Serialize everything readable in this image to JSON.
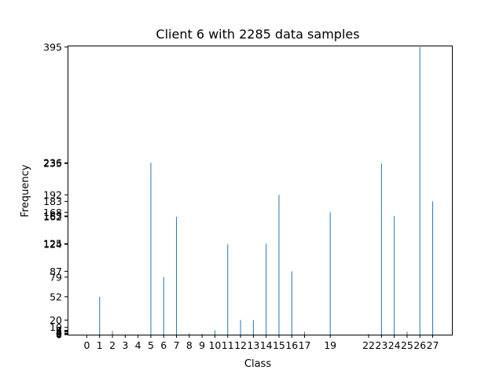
{
  "chart_data": {
    "type": "bar",
    "title": "Client 6 with 2285 data samples",
    "xlabel": "Class",
    "ylabel": "Frequency",
    "x": [
      0,
      1,
      2,
      3,
      4,
      5,
      6,
      7,
      8,
      9,
      10,
      11,
      12,
      13,
      14,
      15,
      16,
      17,
      19,
      22,
      23,
      24,
      25,
      26,
      27
    ],
    "values": [
      0,
      52,
      5,
      0,
      0,
      236,
      79,
      162,
      2,
      1,
      6,
      124,
      20,
      20,
      125,
      192,
      87,
      4,
      168,
      1,
      235,
      163,
      4,
      395,
      183
    ],
    "x_tick_labels": [
      "0",
      "1",
      "2",
      "3",
      "4",
      "5",
      "6",
      "7",
      "8",
      "9",
      "10",
      "11",
      "12",
      "13",
      "14",
      "15",
      "16",
      "17",
      "19",
      "22",
      "23",
      "24",
      "25",
      "26",
      "27"
    ],
    "y_ticks": [
      0,
      1,
      2,
      4,
      5,
      6,
      10,
      20,
      52,
      79,
      87,
      124,
      125,
      162,
      163,
      168,
      183,
      192,
      235,
      236,
      395
    ],
    "xlim": [
      -1.5,
      28.5
    ],
    "ylim": [
      0,
      397
    ],
    "bar_color": "#1f77b4",
    "grid": false,
    "legend": "none"
  }
}
